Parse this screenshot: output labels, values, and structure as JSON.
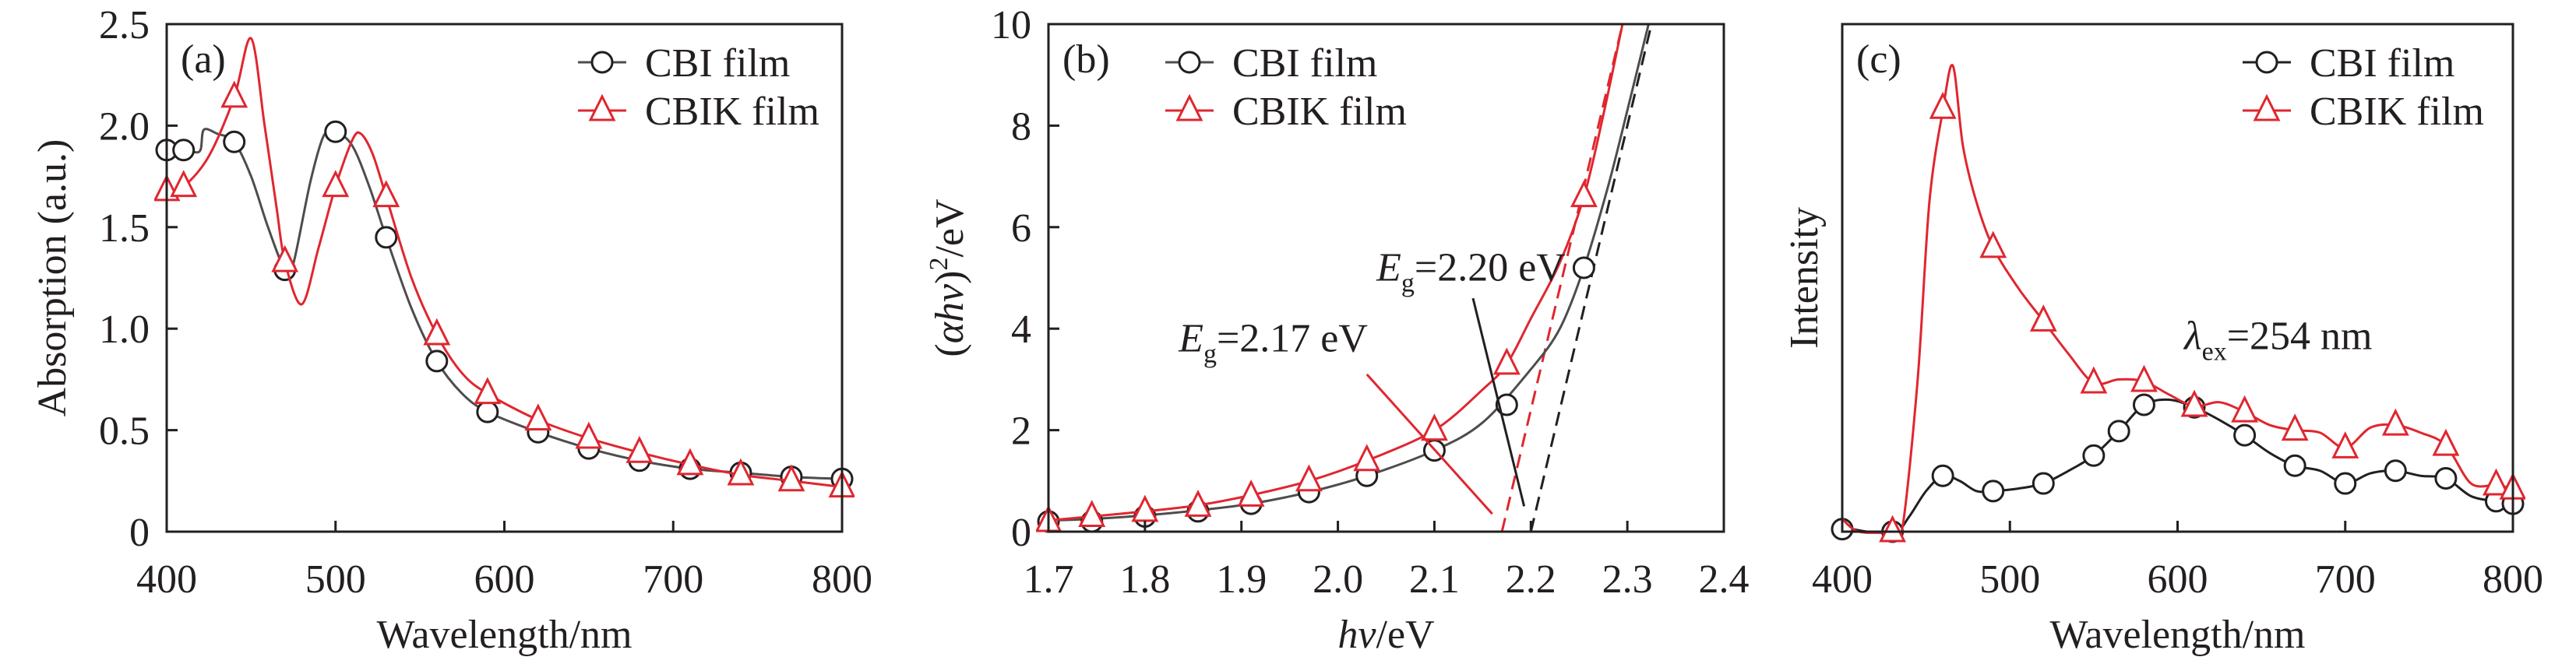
{
  "colors": {
    "cbi": "#4d4d4d",
    "cbi_marker": "#231f20",
    "cbik": "#e0262f",
    "axis": "#231f20"
  },
  "chart_data": [
    {
      "type": "line",
      "panel_label": "(a)",
      "xlabel": "Wavelength/nm",
      "ylabel": "Absorption (a.u.)",
      "xlim": [
        400,
        800
      ],
      "ylim": [
        0,
        2.5
      ],
      "xticks": [
        400,
        500,
        600,
        700,
        800
      ],
      "xtick_labels": [
        "400",
        "500",
        "600",
        "700",
        "800"
      ],
      "yticks": [
        0,
        0.5,
        1.0,
        1.5,
        2.0,
        2.5
      ],
      "ytick_labels": [
        "0",
        "0.5",
        "1.0",
        "1.5",
        "2.0",
        "2.5"
      ],
      "legend": {
        "placement": "top-right",
        "entries": [
          "CBI film",
          "CBIK film"
        ]
      },
      "series": [
        {
          "name": "CBI film",
          "marker": "circle",
          "curve": [
            [
              400,
              1.88
            ],
            [
              415,
              1.87
            ],
            [
              420,
              1.88
            ],
            [
              422,
              1.98
            ],
            [
              430,
              1.96
            ],
            [
              440,
              1.92
            ],
            [
              450,
              1.75
            ],
            [
              460,
              1.5
            ],
            [
              470,
              1.29
            ],
            [
              475,
              1.32
            ],
            [
              485,
              1.72
            ],
            [
              493,
              1.95
            ],
            [
              500,
              1.97
            ],
            [
              510,
              1.9
            ],
            [
              520,
              1.7
            ],
            [
              530,
              1.45
            ],
            [
              545,
              1.1
            ],
            [
              560,
              0.84
            ],
            [
              575,
              0.68
            ],
            [
              590,
              0.59
            ],
            [
              620,
              0.49
            ],
            [
              650,
              0.41
            ],
            [
              680,
              0.35
            ],
            [
              710,
              0.31
            ],
            [
              740,
              0.29
            ],
            [
              770,
              0.27
            ],
            [
              800,
              0.26
            ]
          ],
          "markers": [
            [
              400,
              1.88
            ],
            [
              410,
              1.88
            ],
            [
              440,
              1.92
            ],
            [
              470,
              1.29
            ],
            [
              500,
              1.97
            ],
            [
              530,
              1.45
            ],
            [
              560,
              0.84
            ],
            [
              590,
              0.59
            ],
            [
              620,
              0.49
            ],
            [
              650,
              0.41
            ],
            [
              680,
              0.35
            ],
            [
              710,
              0.31
            ],
            [
              740,
              0.29
            ],
            [
              770,
              0.27
            ],
            [
              800,
              0.26
            ]
          ]
        },
        {
          "name": "CBIK film",
          "marker": "triangle",
          "curve": [
            [
              400,
              1.68
            ],
            [
              410,
              1.7
            ],
            [
              425,
              1.85
            ],
            [
              440,
              2.14
            ],
            [
              450,
              2.43
            ],
            [
              458,
              2.0
            ],
            [
              465,
              1.6
            ],
            [
              470,
              1.33
            ],
            [
              480,
              1.12
            ],
            [
              490,
              1.4
            ],
            [
              500,
              1.7
            ],
            [
              510,
              1.93
            ],
            [
              515,
              1.96
            ],
            [
              522,
              1.86
            ],
            [
              530,
              1.65
            ],
            [
              545,
              1.25
            ],
            [
              560,
              0.97
            ],
            [
              575,
              0.78
            ],
            [
              590,
              0.68
            ],
            [
              620,
              0.55
            ],
            [
              650,
              0.46
            ],
            [
              680,
              0.39
            ],
            [
              710,
              0.33
            ],
            [
              740,
              0.28
            ],
            [
              770,
              0.25
            ],
            [
              800,
              0.22
            ]
          ],
          "markers": [
            [
              400,
              1.68
            ],
            [
              410,
              1.7
            ],
            [
              440,
              2.14
            ],
            [
              470,
              1.33
            ],
            [
              500,
              1.7
            ],
            [
              530,
              1.65
            ],
            [
              560,
              0.97
            ],
            [
              590,
              0.68
            ],
            [
              620,
              0.55
            ],
            [
              650,
              0.46
            ],
            [
              680,
              0.39
            ],
            [
              710,
              0.33
            ],
            [
              740,
              0.28
            ],
            [
              770,
              0.25
            ],
            [
              800,
              0.22
            ]
          ]
        }
      ]
    },
    {
      "type": "line",
      "panel_label": "(b)",
      "xlabel_italic": "hv",
      "xlabel_rest": "/eV",
      "ylabel_open": "(",
      "ylabel_italic": "αhv",
      "ylabel_close": ")",
      "ylabel_sup": "2",
      "ylabel_rest": "/eV",
      "xlim": [
        1.7,
        2.4
      ],
      "ylim": [
        0,
        10
      ],
      "xticks": [
        1.7,
        1.8,
        1.9,
        2.0,
        2.1,
        2.2,
        2.3,
        2.4
      ],
      "xtick_labels": [
        "1.7",
        "1.8",
        "1.9",
        "2.0",
        "2.1",
        "2.2",
        "2.3",
        "2.4"
      ],
      "yticks": [
        0,
        2,
        4,
        6,
        8,
        10
      ],
      "ytick_labels": [
        "0",
        "2",
        "4",
        "6",
        "8",
        "10"
      ],
      "legend": {
        "placement": "top-left",
        "entries": [
          "CBI film",
          "CBIK film"
        ]
      },
      "series": [
        {
          "name": "CBI film",
          "marker": "circle",
          "curve": [
            [
              1.7,
              0.22
            ],
            [
              1.745,
              0.25
            ],
            [
              1.8,
              0.32
            ],
            [
              1.855,
              0.42
            ],
            [
              1.91,
              0.55
            ],
            [
              1.97,
              0.78
            ],
            [
              2.03,
              1.1
            ],
            [
              2.1,
              1.6
            ],
            [
              2.15,
              2.15
            ],
            [
              2.2,
              3.2
            ],
            [
              2.23,
              4.0
            ],
            [
              2.255,
              5.2
            ],
            [
              2.28,
              6.8
            ],
            [
              2.3,
              8.3
            ],
            [
              2.322,
              10
            ]
          ],
          "markers": [
            [
              1.7,
              0.2
            ],
            [
              1.745,
              0.2
            ],
            [
              1.8,
              0.3
            ],
            [
              1.855,
              0.4
            ],
            [
              1.91,
              0.55
            ],
            [
              1.97,
              0.78
            ],
            [
              2.03,
              1.1
            ],
            [
              2.1,
              1.6
            ],
            [
              2.175,
              2.5
            ],
            [
              2.255,
              5.2
            ]
          ]
        },
        {
          "name": "CBIK film",
          "marker": "triangle",
          "curve": [
            [
              1.7,
              0.22
            ],
            [
              1.745,
              0.3
            ],
            [
              1.8,
              0.4
            ],
            [
              1.855,
              0.52
            ],
            [
              1.91,
              0.72
            ],
            [
              1.97,
              1.0
            ],
            [
              2.03,
              1.4
            ],
            [
              2.1,
              2.0
            ],
            [
              2.15,
              2.8
            ],
            [
              2.175,
              3.3
            ],
            [
              2.2,
              4.2
            ],
            [
              2.23,
              5.3
            ],
            [
              2.255,
              6.6
            ],
            [
              2.275,
              8.2
            ],
            [
              2.295,
              10
            ]
          ],
          "markers": [
            [
              1.7,
              0.2
            ],
            [
              1.745,
              0.3
            ],
            [
              1.8,
              0.4
            ],
            [
              1.855,
              0.5
            ],
            [
              1.91,
              0.7
            ],
            [
              1.97,
              1.0
            ],
            [
              2.03,
              1.4
            ],
            [
              2.1,
              2.0
            ],
            [
              2.175,
              3.3
            ],
            [
              2.255,
              6.6
            ]
          ]
        }
      ],
      "tangents": [
        {
          "series": "CBI film",
          "from": [
            2.2,
            0
          ],
          "to": [
            2.325,
            10
          ]
        },
        {
          "series": "CBIK film",
          "from": [
            2.17,
            0
          ],
          "to": [
            2.295,
            10
          ]
        }
      ],
      "annotations": [
        {
          "series": "CBI film",
          "main": "E",
          "sub": "g",
          "rest": "=2.20 eV",
          "at": [
            2.04,
            4.95
          ],
          "leader": [
            [
              2.14,
              4.6
            ],
            [
              2.193,
              0.5
            ]
          ]
        },
        {
          "series": "CBIK film",
          "main": "E",
          "sub": "g",
          "rest": "=2.17 eV",
          "at": [
            1.835,
            3.55
          ],
          "leader": [
            [
              2.03,
              3.1
            ],
            [
              2.16,
              0.35
            ]
          ]
        }
      ]
    },
    {
      "type": "line",
      "panel_label": "(c)",
      "xlabel": "Wavelength/nm",
      "ylabel": "Intensity",
      "xlim": [
        400,
        800
      ],
      "ylim": [
        0,
        10
      ],
      "xticks": [
        400,
        500,
        600,
        700,
        800
      ],
      "xtick_labels": [
        "400",
        "500",
        "600",
        "700",
        "800"
      ],
      "yticks": [],
      "ytick_labels": [],
      "legend": {
        "placement": "top-right",
        "entries": [
          "CBI film",
          "CBIK film"
        ]
      },
      "series": [
        {
          "name": "CBI film",
          "marker": "circle",
          "curve": [
            [
              400,
              0.1
            ],
            [
              415,
              0
            ],
            [
              432,
              0
            ],
            [
              440,
              0.3
            ],
            [
              450,
              0.8
            ],
            [
              460,
              1.1
            ],
            [
              470,
              1.0
            ],
            [
              480,
              0.8
            ],
            [
              490,
              0.8
            ],
            [
              505,
              0.85
            ],
            [
              520,
              0.95
            ],
            [
              535,
              1.2
            ],
            [
              550,
              1.5
            ],
            [
              565,
              1.98
            ],
            [
              580,
              2.5
            ],
            [
              595,
              2.6
            ],
            [
              610,
              2.45
            ],
            [
              625,
              2.2
            ],
            [
              640,
              1.9
            ],
            [
              655,
              1.55
            ],
            [
              670,
              1.3
            ],
            [
              685,
              1.2
            ],
            [
              700,
              0.95
            ],
            [
              715,
              1.15
            ],
            [
              730,
              1.2
            ],
            [
              745,
              1.1
            ],
            [
              760,
              1.05
            ],
            [
              775,
              0.7
            ],
            [
              790,
              0.6
            ],
            [
              800,
              0.55
            ]
          ],
          "markers": [
            [
              400,
              0.05
            ],
            [
              430,
              0
            ],
            [
              460,
              1.1
            ],
            [
              490,
              0.8
            ],
            [
              520,
              0.95
            ],
            [
              550,
              1.5
            ],
            [
              565,
              1.98
            ],
            [
              580,
              2.5
            ],
            [
              610,
              2.45
            ],
            [
              640,
              1.9
            ],
            [
              670,
              1.3
            ],
            [
              700,
              0.95
            ],
            [
              730,
              1.2
            ],
            [
              760,
              1.05
            ],
            [
              790,
              0.6
            ],
            [
              800,
              0.55
            ]
          ]
        },
        {
          "name": "CBIK film",
          "marker": "triangle",
          "curve": [
            [
              400,
              0.25
            ],
            [
              410,
              0
            ],
            [
              430,
              0
            ],
            [
              436,
              0.1
            ],
            [
              445,
              3.0
            ],
            [
              452,
              6.5
            ],
            [
              460,
              8.3
            ],
            [
              466,
              9.18
            ],
            [
              472,
              7.6
            ],
            [
              480,
              6.5
            ],
            [
              490,
              5.6
            ],
            [
              505,
              4.8
            ],
            [
              520,
              4.15
            ],
            [
              535,
              3.5
            ],
            [
              550,
              2.93
            ],
            [
              565,
              3.0
            ],
            [
              580,
              2.96
            ],
            [
              595,
              2.7
            ],
            [
              610,
              2.47
            ],
            [
              625,
              2.55
            ],
            [
              640,
              2.36
            ],
            [
              655,
              2.1
            ],
            [
              670,
              2.0
            ],
            [
              685,
              1.95
            ],
            [
              700,
              1.65
            ],
            [
              715,
              2.05
            ],
            [
              730,
              2.1
            ],
            [
              745,
              1.95
            ],
            [
              760,
              1.7
            ],
            [
              775,
              0.95
            ],
            [
              790,
              0.92
            ],
            [
              800,
              0.84
            ]
          ],
          "markers": [
            [
              430,
              0
            ],
            [
              460,
              8.34
            ],
            [
              490,
              5.6
            ],
            [
              520,
              4.15
            ],
            [
              550,
              2.93
            ],
            [
              580,
              2.96
            ],
            [
              610,
              2.47
            ],
            [
              640,
              2.36
            ],
            [
              670,
              2.0
            ],
            [
              700,
              1.65
            ],
            [
              730,
              2.1
            ],
            [
              760,
              1.7
            ],
            [
              790,
              0.92
            ],
            [
              800,
              0.84
            ]
          ]
        }
      ],
      "annotations": [
        {
          "main": "λ",
          "sub": "ex",
          "rest": "=254 nm",
          "at": [
            604,
            3.6
          ]
        }
      ]
    }
  ]
}
